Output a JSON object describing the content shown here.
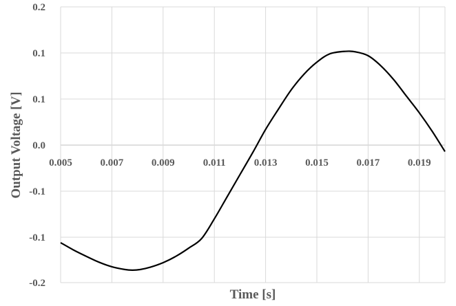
{
  "chart_data": {
    "type": "line",
    "xlabel": "Time [s]",
    "ylabel": "Output Voltage [V]",
    "xlim": [
      0.005,
      0.02
    ],
    "ylim": [
      -0.2,
      0.2
    ],
    "x_ticks": [
      0.005,
      0.007,
      0.009,
      0.011,
      0.013,
      0.015,
      0.017,
      0.019
    ],
    "x_tick_labels": [
      "0.005",
      "0.007",
      "0.009",
      "0.011",
      "0.013",
      "0.015",
      "0.017",
      "0.019"
    ],
    "y_ticks": [
      0.2,
      0.1,
      0.05,
      0.0,
      -0.05,
      -0.1,
      -0.2
    ],
    "y_tick_labels": [
      "0.2",
      "0.1",
      "0.1",
      "0.0",
      "-0.1",
      "-0.1",
      "-0.2"
    ],
    "grid": true,
    "series": [
      {
        "color": "#000000",
        "x": [
          0.005,
          0.0055,
          0.006,
          0.0065,
          0.007,
          0.0075,
          0.0078,
          0.0081,
          0.0085,
          0.009,
          0.0095,
          0.01,
          0.0105,
          0.011,
          0.0115,
          0.012,
          0.0125,
          0.013,
          0.0135,
          0.014,
          0.0145,
          0.015,
          0.0155,
          0.0161,
          0.0165,
          0.017,
          0.0175,
          0.018,
          0.0185,
          0.019,
          0.0195,
          0.02
        ],
        "y": [
          -0.112,
          -0.128,
          -0.142,
          -0.155,
          -0.165,
          -0.171,
          -0.1725,
          -0.1712,
          -0.166,
          -0.156,
          -0.142,
          -0.124,
          -0.103,
          -0.08,
          -0.056,
          -0.032,
          -0.008,
          0.017,
          0.039,
          0.06,
          0.077,
          0.09,
          0.099,
          0.1035,
          0.1025,
          0.097,
          0.086,
          0.071,
          0.053,
          0.035,
          0.015,
          -0.007
        ]
      }
    ]
  }
}
